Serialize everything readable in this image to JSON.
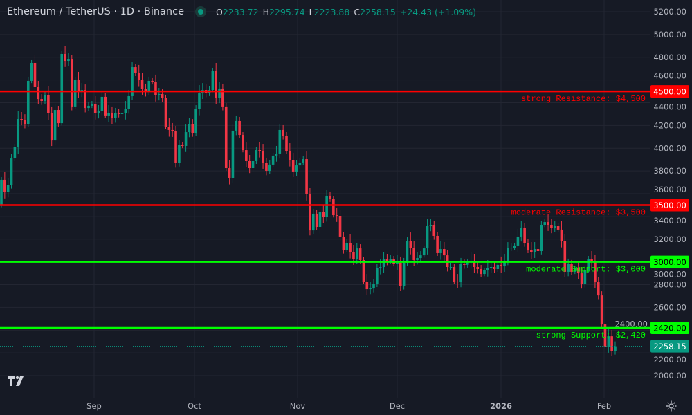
{
  "header": {
    "title": "Ethereum / TetherUS · 1D · Binance",
    "open_label": "O",
    "open": "2233.72",
    "high_label": "H",
    "high": "2295.74",
    "low_label": "L",
    "low": "2223.88",
    "close_label": "C",
    "close": "2258.15",
    "change": "+24.43 (+1.09%)",
    "status_color": "#089981"
  },
  "colors": {
    "background": "#161a25",
    "grid": "#232632",
    "up": "#089981",
    "down": "#f23645",
    "resistance": "#ff0000",
    "support": "#00ff00",
    "axis_text": "#b2b5be"
  },
  "icons": {
    "logo": "tradingview-logo-icon",
    "settings": "gear-icon"
  },
  "chart_data": {
    "type": "candlestick",
    "title": "Ethereum / TetherUS · 1D · Binance",
    "interval": "1D",
    "ylim": [
      2000,
      5200
    ],
    "yticks": [
      "5200.00",
      "5000.00",
      "4800.00",
      "4600.00",
      "4400.00",
      "4200.00",
      "4000.00",
      "3800.00",
      "3600.00",
      "3400.00",
      "3200.00",
      "3000.00",
      "2800.00",
      "2600.00",
      "2400.00",
      "2200.00",
      "2000.00"
    ],
    "xticks": [
      "Sep",
      "Oct",
      "Nov",
      "Dec",
      "2026",
      "Feb"
    ],
    "grid": true,
    "first_open": 3500,
    "closes": [
      3722,
      3612,
      3679,
      3910,
      4008,
      4257,
      4250,
      4214,
      4592,
      4750,
      4537,
      4433,
      4415,
      4470,
      4306,
      4068,
      4336,
      4220,
      4829,
      4768,
      4780,
      4367,
      4598,
      4500,
      4512,
      4354,
      4373,
      4391,
      4306,
      4324,
      4452,
      4288,
      4306,
      4263,
      4306,
      4300,
      4306,
      4348,
      4458,
      4713,
      4659,
      4598,
      4519,
      4494,
      4592,
      4580,
      4464,
      4476,
      4440,
      4190,
      4160,
      4148,
      3868,
      4032,
      4020,
      4141,
      4214,
      4135,
      4348,
      4482,
      4512,
      4488,
      4512,
      4683,
      4440,
      4525,
      4367,
      3825,
      3740,
      4154,
      4239,
      4117,
      3983,
      3886,
      3825,
      3886,
      3983,
      3977,
      3868,
      3801,
      3856,
      3935,
      3953,
      4160,
      4111,
      3971,
      3898,
      3795,
      3849,
      3874,
      3904,
      3594,
      3277,
      3424,
      3308,
      3436,
      3393,
      3582,
      3557,
      3411,
      3405,
      3223,
      3107,
      3168,
      3089,
      3022,
      3119,
      3016,
      2827,
      2760,
      2766,
      2803,
      2949,
      2955,
      3022,
      3010,
      3028,
      2980,
      2992,
      2791,
      2992,
      3186,
      3125,
      3016,
      3034,
      3058,
      3119,
      3314,
      3320,
      3229,
      3077,
      3113,
      3058,
      2955,
      2955,
      2827,
      2821,
      2980,
      2974,
      2998,
      3010,
      2955,
      2937,
      2894,
      2925,
      2949,
      2955,
      2937,
      2974,
      2961,
      3010,
      3125,
      3125,
      3144,
      3223,
      3302,
      3168,
      3101,
      3083,
      3113,
      3095,
      3326,
      3350,
      3326,
      3296,
      3314,
      3284,
      3186,
      2913,
      2980,
      2913,
      2943,
      2900,
      2809,
      2925,
      3022,
      3004,
      2821,
      2705,
      2450,
      2255,
      2346,
      2219,
      2258.15
    ],
    "levels": [
      {
        "price": 4500,
        "axis_label": "4500.00",
        "text": "strong Resistance: $4,500",
        "kind": "resistance"
      },
      {
        "price": 3500,
        "axis_label": "3500.00",
        "text": "moderate Resistance: $3,500",
        "kind": "resistance"
      },
      {
        "price": 3000,
        "axis_label": "3000.00",
        "text": "moderate Support: $3,000",
        "kind": "support"
      },
      {
        "price": 2420,
        "axis_label": "2420.00",
        "text": "strong Support: $2,420",
        "kind": "support"
      }
    ],
    "last_price": {
      "price": 2258.15,
      "label": "2258.15"
    }
  }
}
